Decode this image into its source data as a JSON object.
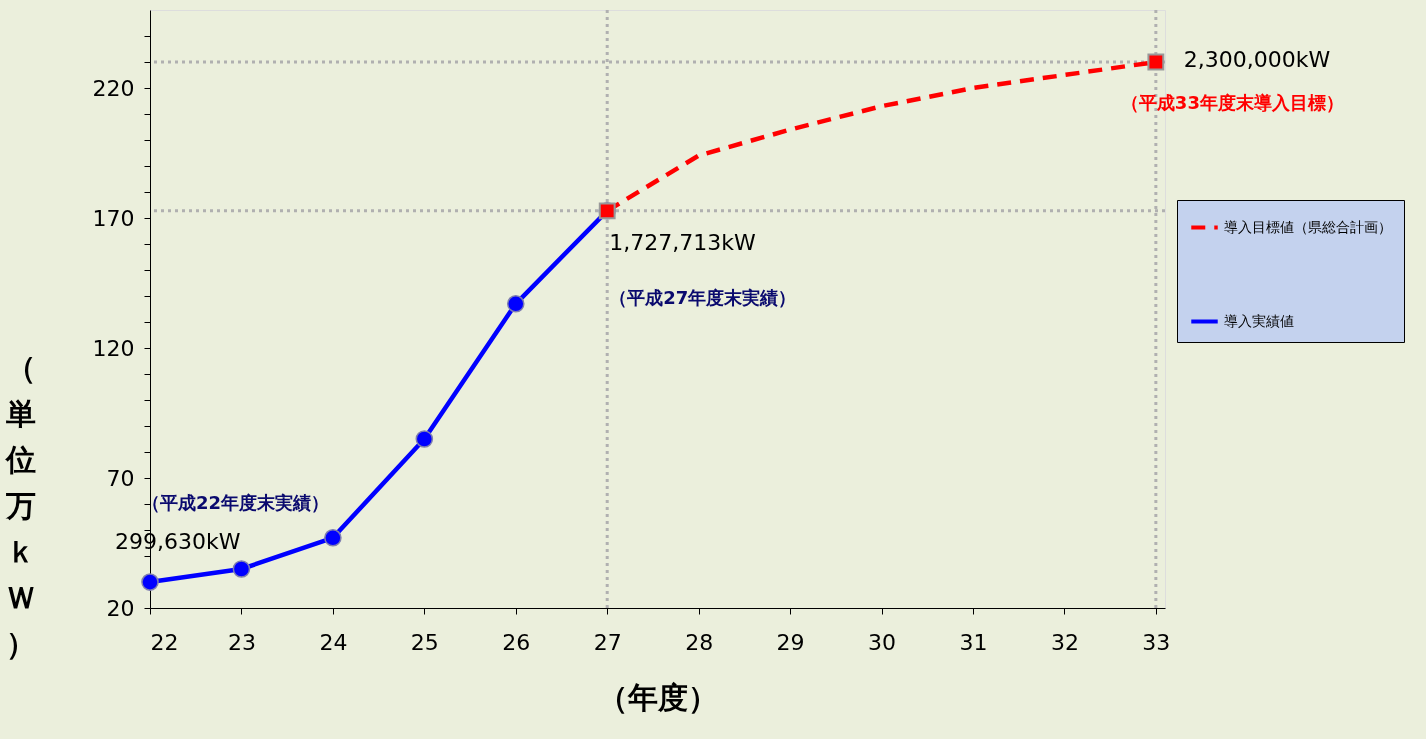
{
  "chart_data": {
    "type": "line",
    "xlabel": "（年度）",
    "ylabel": "（単位万ｋＷ）",
    "xlim": [
      22,
      33.1
    ],
    "xticks": [
      22,
      23,
      24,
      25,
      26,
      27,
      28,
      29,
      30,
      31,
      32,
      33
    ],
    "ylim": [
      20,
      250
    ],
    "yticks": [
      20,
      {
        "value": 30,
        "label": null
      },
      {
        "value": 40,
        "label": null
      },
      {
        "value": 50,
        "label": null
      },
      {
        "value": 60,
        "label": null
      },
      70,
      {
        "value": 80,
        "label": null
      },
      {
        "value": 90,
        "label": null
      },
      {
        "value": 100,
        "label": null
      },
      {
        "value": 110,
        "label": null
      },
      120,
      {
        "value": 130,
        "label": null
      },
      {
        "value": 140,
        "label": null
      },
      {
        "value": 150,
        "label": null
      },
      {
        "value": 160,
        "label": null
      },
      170,
      {
        "value": 180,
        "label": null
      },
      {
        "value": 190,
        "label": null
      },
      {
        "value": 200,
        "label": null
      },
      {
        "value": 210,
        "label": null
      },
      220,
      {
        "value": 230,
        "label": null
      },
      {
        "value": 240,
        "label": null
      }
    ],
    "grid": false,
    "legend": "right",
    "series": [
      {
        "name": "導入目標値（県総合計画）",
        "color": "#ff0000",
        "line_style": "dashed",
        "marker": "none",
        "x": [
          27,
          28,
          29,
          30,
          31,
          32,
          33
        ],
        "values": [
          172.77,
          194,
          204,
          213,
          220,
          225,
          230
        ]
      },
      {
        "name": "導入実績値",
        "color": "#0000ff",
        "line_style": "solid",
        "marker": "circle",
        "x": [
          22,
          23,
          24,
          25,
          26,
          27
        ],
        "values": [
          29.963,
          35,
          47,
          85,
          137,
          172.77
        ]
      },
      {
        "color": "#ff0000",
        "type": "scatter",
        "marker": "square",
        "x": [
          27,
          33
        ],
        "values": [
          172.77,
          230
        ]
      }
    ],
    "ref_lines": [
      {
        "axis": "y",
        "value": 230,
        "color": "#b0b0b0",
        "line_style": "dotted"
      },
      {
        "axis": "y",
        "value": 172.77,
        "color": "#b0b0b0",
        "line_style": "dotted"
      },
      {
        "axis": "x",
        "value": 27,
        "color": "#b0b0b0",
        "line_style": "dotted"
      },
      {
        "axis": "x",
        "value": 33,
        "color": "#b0b0b0",
        "line_style": "dotted"
      }
    ],
    "annotations": [
      {
        "text": "299,630kW",
        "x": 22,
        "y": 29.963
      },
      "（平成22年度末実績）",
      {
        "text": "1,727,713kW",
        "x": 27,
        "y": 172.77
      },
      "（平成27年度末実績）",
      {
        "text": "2,300,000kW",
        "x": 33,
        "y": 230
      },
      {
        "text": "（平成33年度末導入目標）",
        "x": 33,
        "y": 230
      }
    ]
  }
}
